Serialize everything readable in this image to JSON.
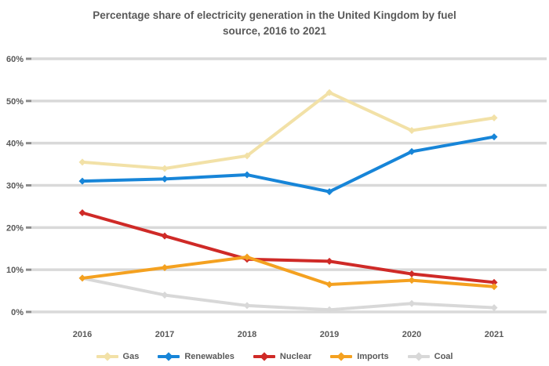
{
  "title": {
    "line1": "Percentage share of electricity generation in the United Kingdom by fuel",
    "line2": "source, 2016 to 2021"
  },
  "axes": {
    "y_tick_labels": [
      "60%",
      "50%",
      "40%",
      "30%",
      "20%",
      "10%",
      "0%"
    ],
    "x_tick_labels": [
      "2016",
      "2017",
      "2018",
      "2019",
      "2020",
      "2021"
    ]
  },
  "legend": {
    "items": [
      {
        "label": "Gas",
        "color": "#F2E1A7"
      },
      {
        "label": "Renewables",
        "color": "#1785D8"
      },
      {
        "label": "Nuclear",
        "color": "#CF2A27"
      },
      {
        "label": "Imports",
        "color": "#F4A120"
      },
      {
        "label": "Coal",
        "color": "#D8D8D8"
      }
    ]
  },
  "colors": {
    "background": "#FFFFFF",
    "gridline": "#D9D9D9",
    "tick": "#8C8C8C",
    "text": "#595959"
  },
  "chart_data": {
    "type": "line",
    "title": "Percentage share of electricity generation in the United Kingdom by fuel source, 2016 to 2021",
    "categories": [
      "2016",
      "2017",
      "2018",
      "2019",
      "2020",
      "2021"
    ],
    "series": [
      {
        "name": "Coal",
        "color": "#D8D8D8",
        "values": [
          8,
          4,
          1.5,
          0.5,
          2,
          1
        ]
      },
      {
        "name": "Gas",
        "color": "#F2E1A7",
        "values": [
          35.5,
          34,
          37,
          52,
          43,
          46
        ]
      },
      {
        "name": "Nuclear",
        "color": "#CF2A27",
        "values": [
          23.5,
          18,
          12.5,
          12,
          9,
          7
        ]
      },
      {
        "name": "Imports",
        "color": "#F4A120",
        "values": [
          8,
          10.5,
          13,
          6.5,
          7.5,
          6
        ]
      },
      {
        "name": "Renewables",
        "color": "#1785D8",
        "values": [
          31,
          31.5,
          32.5,
          28.5,
          38,
          41.5
        ]
      }
    ],
    "xlabel": "",
    "ylabel": "",
    "ylim": [
      0,
      60
    ],
    "ytick_interval": 10,
    "grid": true,
    "legend_position": "bottom",
    "marker": "diamond"
  }
}
